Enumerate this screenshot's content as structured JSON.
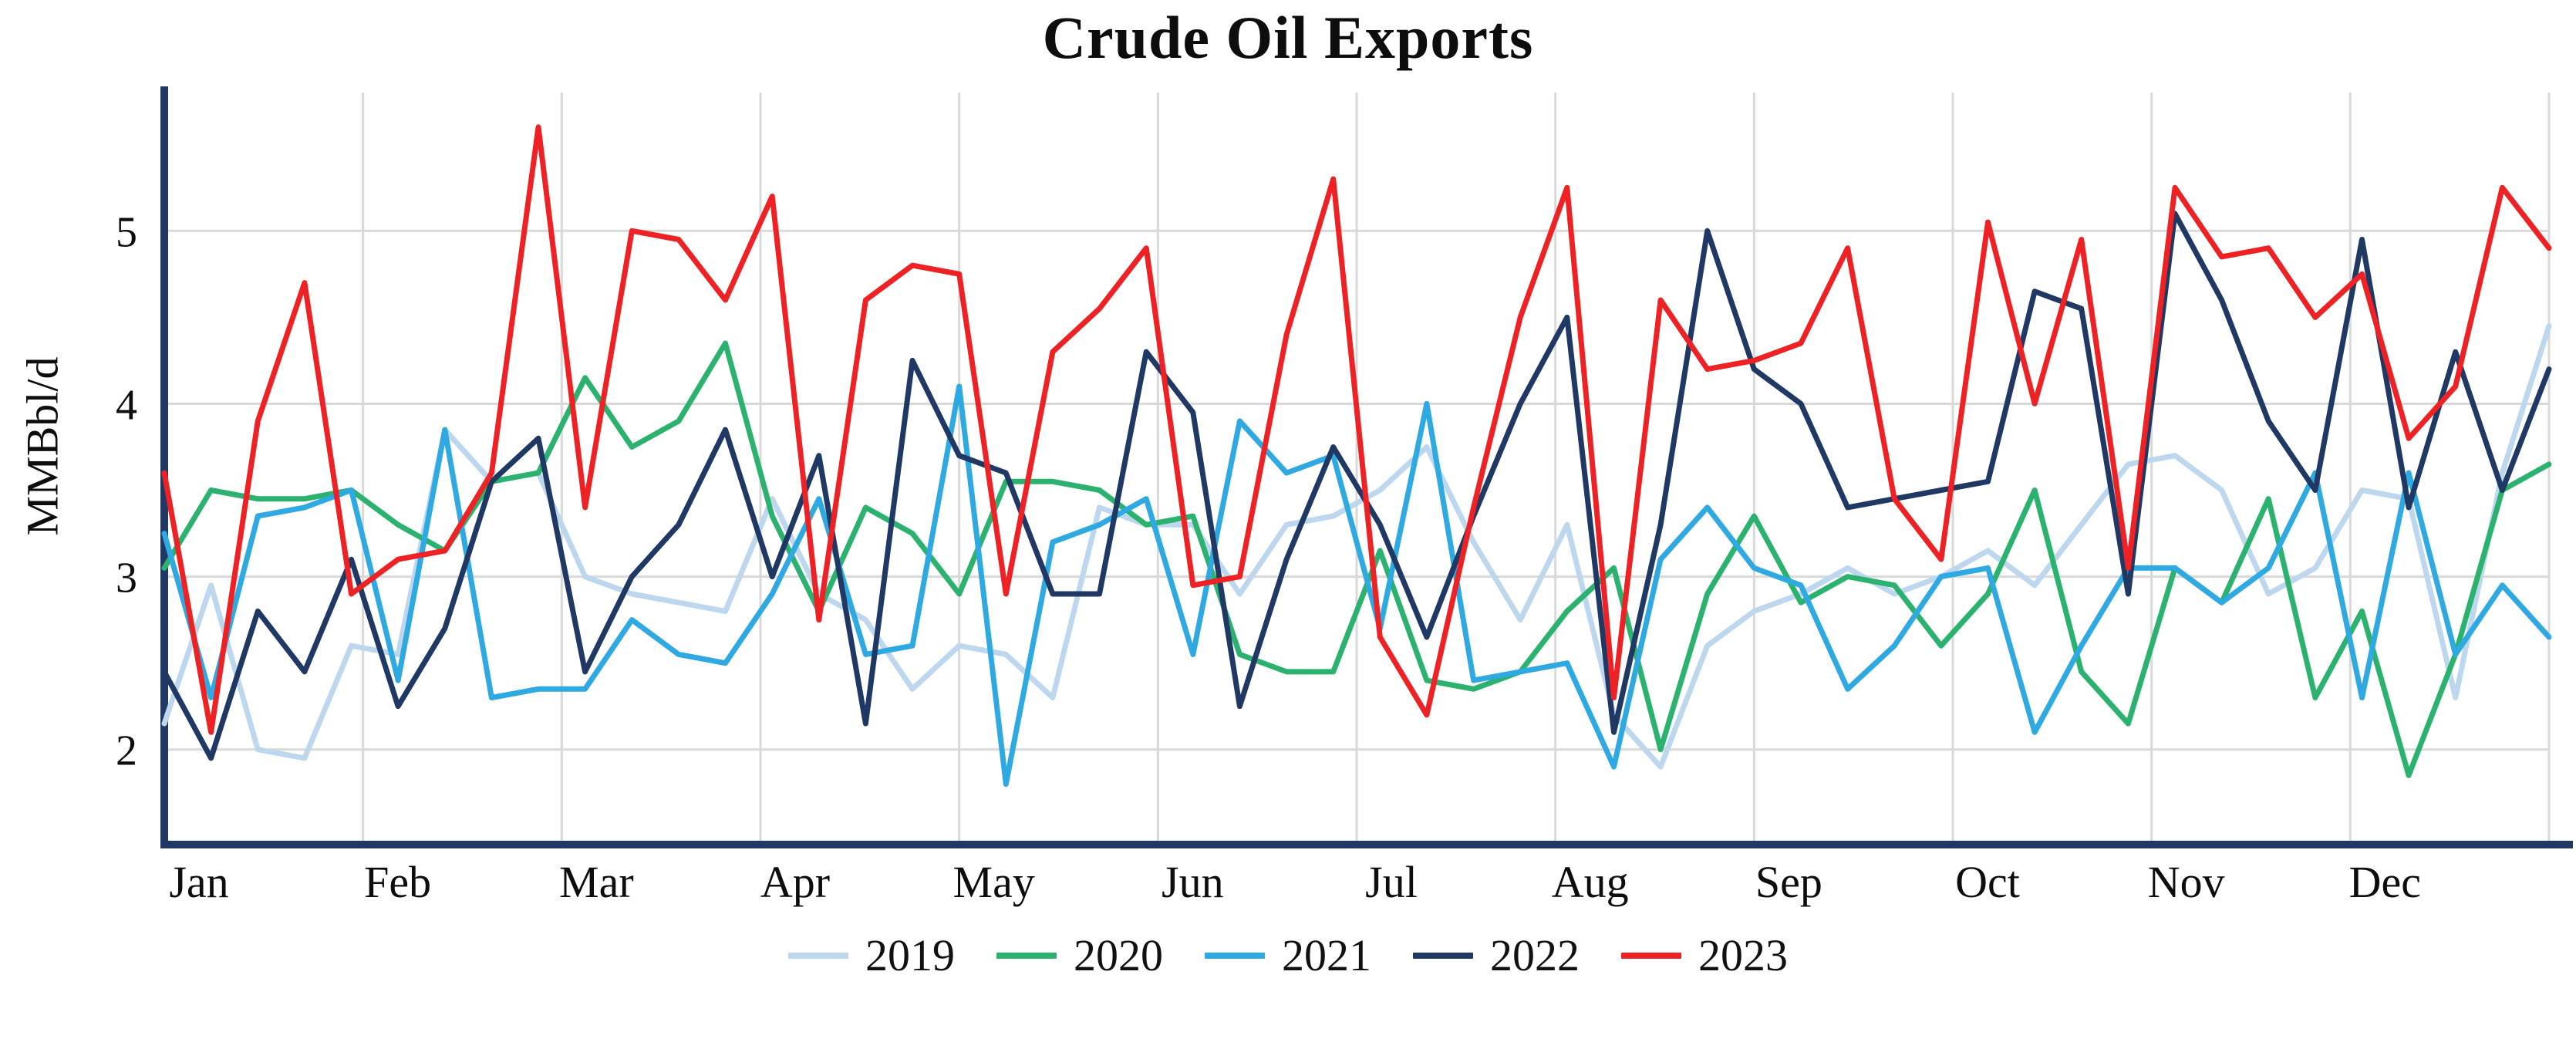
{
  "title": "Crude Oil Exports",
  "chart_data": {
    "type": "line",
    "title": "Crude Oil Exports",
    "xlabel": "",
    "ylabel": "MMBbl/d",
    "x_unit": "week-of-year",
    "x_tick_labels": [
      "Jan",
      "Feb",
      "Mar",
      "Apr",
      "May",
      "Jun",
      "Jul",
      "Aug",
      "Sep",
      "Oct",
      "Nov",
      "Dec"
    ],
    "y_ticks": [
      2,
      3,
      4,
      5
    ],
    "ylim": [
      1.45,
      5.8
    ],
    "grid": true,
    "legend_position": "bottom",
    "axis_color": "#1f3864",
    "grid_color": "#d9d9d9",
    "series": [
      {
        "name": "2019",
        "color": "#bdd7ee",
        "values": [
          2.15,
          2.95,
          2.0,
          1.95,
          2.6,
          2.55,
          3.85,
          3.55,
          3.6,
          3.0,
          2.9,
          2.85,
          2.8,
          3.45,
          2.9,
          2.75,
          2.35,
          2.6,
          2.55,
          2.3,
          3.4,
          3.3,
          3.3,
          2.9,
          3.3,
          3.35,
          3.5,
          3.75,
          3.2,
          2.75,
          3.3,
          2.2,
          1.9,
          2.6,
          2.8,
          2.9,
          3.05,
          2.9,
          3.0,
          3.15,
          2.95,
          3.3,
          3.65,
          3.7,
          3.5,
          2.9,
          3.05,
          3.5,
          3.45,
          2.3,
          3.6,
          4.45
        ]
      },
      {
        "name": "2020",
        "color": "#2bb26e",
        "values": [
          3.05,
          3.5,
          3.45,
          3.45,
          3.5,
          3.3,
          3.15,
          3.55,
          3.6,
          4.15,
          3.75,
          3.9,
          4.35,
          3.35,
          2.8,
          3.4,
          3.25,
          2.9,
          3.55,
          3.55,
          3.5,
          3.3,
          3.35,
          2.55,
          2.45,
          2.45,
          3.15,
          2.4,
          2.35,
          2.45,
          2.8,
          3.05,
          2.0,
          2.9,
          3.35,
          2.85,
          3.0,
          2.95,
          2.6,
          2.9,
          3.5,
          2.45,
          2.15,
          3.05,
          2.85,
          3.45,
          2.3,
          2.8,
          1.85,
          2.55,
          3.5,
          3.65
        ]
      },
      {
        "name": "2021",
        "color": "#2ea9e1",
        "values": [
          3.25,
          2.3,
          3.35,
          3.4,
          3.5,
          2.4,
          3.85,
          2.3,
          2.35,
          2.35,
          2.75,
          2.55,
          2.5,
          2.9,
          3.45,
          2.55,
          2.6,
          4.1,
          1.8,
          3.2,
          3.3,
          3.45,
          2.55,
          3.9,
          3.6,
          3.7,
          2.7,
          4.0,
          2.4,
          2.45,
          2.5,
          1.9,
          3.1,
          3.4,
          3.05,
          2.95,
          2.35,
          2.6,
          3.0,
          3.05,
          2.1,
          2.6,
          3.05,
          3.05,
          2.85,
          3.05,
          3.6,
          2.3,
          3.6,
          2.55,
          2.95,
          2.65
        ]
      },
      {
        "name": "2022",
        "color": "#1f3864",
        "values": [
          2.45,
          1.95,
          2.8,
          2.45,
          3.1,
          2.25,
          2.7,
          3.55,
          3.8,
          2.45,
          3.0,
          3.3,
          3.85,
          3.0,
          3.7,
          2.15,
          4.25,
          3.7,
          3.6,
          2.9,
          2.9,
          4.3,
          3.95,
          2.25,
          3.1,
          3.75,
          3.3,
          2.65,
          3.35,
          4.0,
          4.5,
          2.1,
          3.3,
          5.0,
          4.2,
          4.0,
          3.4,
          3.45,
          3.5,
          3.55,
          4.65,
          4.55,
          2.9,
          5.1,
          4.6,
          3.9,
          3.5,
          4.95,
          3.4,
          4.3,
          3.5,
          4.2
        ]
      },
      {
        "name": "2023",
        "color": "#ee2224",
        "values": [
          3.6,
          2.1,
          3.9,
          4.7,
          2.9,
          3.1,
          3.15,
          3.6,
          5.6,
          3.4,
          5.0,
          4.95,
          4.6,
          5.2,
          2.75,
          4.6,
          4.8,
          4.75,
          2.9,
          4.3,
          4.55,
          4.9,
          2.95,
          3.0,
          4.4,
          5.3,
          2.65,
          2.2,
          3.4,
          4.5,
          5.25,
          2.3,
          4.6,
          4.2,
          4.25,
          4.35,
          4.9,
          3.45,
          3.1,
          5.05,
          4.0,
          4.95,
          3.05,
          5.25,
          4.85,
          4.9,
          4.5,
          4.75,
          3.8,
          4.1,
          5.25,
          4.9
        ]
      }
    ]
  }
}
